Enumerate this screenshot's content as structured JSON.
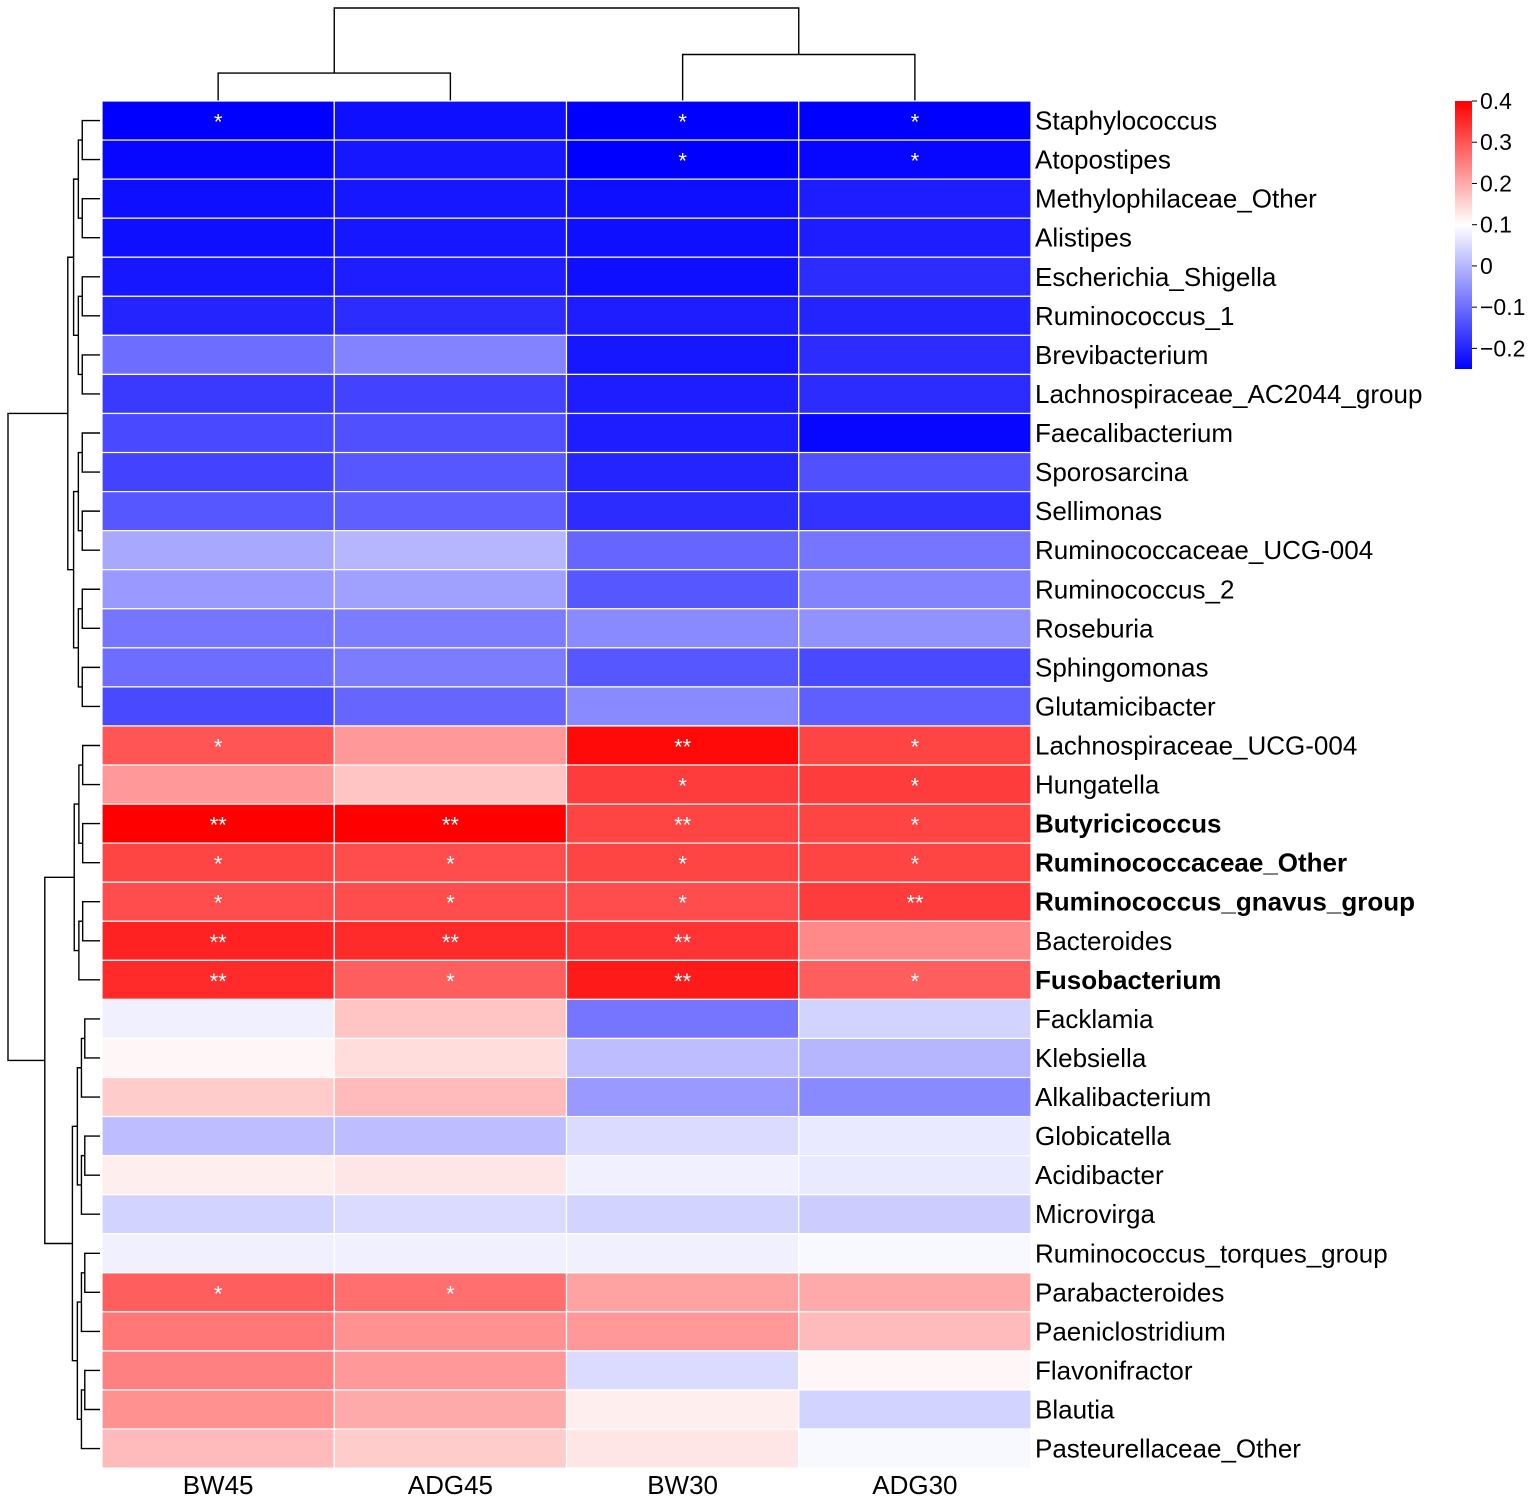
{
  "chart_data": {
    "type": "heatmap",
    "columns": [
      "BW45",
      "ADG45",
      "BW30",
      "ADG30"
    ],
    "rows": [
      "Staphylococcus",
      "Atopostipes",
      "Methylophilaceae_Other",
      "Alistipes",
      "Escherichia_Shigella",
      "Ruminococcus_1",
      "Brevibacterium",
      "Lachnospiraceae_AC2044_group",
      "Faecalibacterium",
      "Sporosarcina",
      "Sellimonas",
      "Ruminococcaceae_UCG-004",
      "Ruminococcus_2",
      "Roseburia",
      "Sphingomonas",
      "Glutamicibacter",
      "Lachnospiraceae_UCG-004",
      "Hungatella",
      "Butyricicoccus",
      "Ruminococcaceae_Other",
      "Ruminococcus_gnavus_group",
      "Bacteroides",
      "Fusobacterium",
      "Facklamia",
      "Klebsiella",
      "Alkalibacterium",
      "Globicatella",
      "Acidibacter",
      "Microvirga",
      "Ruminococcus_torques_group",
      "Parabacteroides",
      "Paeniclostridium",
      "Flavonifractor",
      "Blautia",
      "Pasteurellaceae_Other"
    ],
    "bold_rows": [
      "Butyricicoccus",
      "Ruminococcaceae_Other",
      "Ruminococcus_gnavus_group",
      "Fusobacterium"
    ],
    "values": [
      [
        -0.25,
        -0.23,
        -0.26,
        -0.25
      ],
      [
        -0.24,
        -0.22,
        -0.25,
        -0.24
      ],
      [
        -0.23,
        -0.22,
        -0.23,
        -0.21
      ],
      [
        -0.23,
        -0.22,
        -0.23,
        -0.21
      ],
      [
        -0.22,
        -0.21,
        -0.23,
        -0.19
      ],
      [
        -0.2,
        -0.19,
        -0.21,
        -0.2
      ],
      [
        -0.1,
        -0.07,
        -0.22,
        -0.19
      ],
      [
        -0.17,
        -0.16,
        -0.21,
        -0.19
      ],
      [
        -0.15,
        -0.14,
        -0.21,
        -0.24
      ],
      [
        -0.16,
        -0.13,
        -0.2,
        -0.14
      ],
      [
        -0.13,
        -0.12,
        -0.19,
        -0.18
      ],
      [
        -0.02,
        0.0,
        -0.11,
        -0.09
      ],
      [
        -0.04,
        -0.03,
        -0.13,
        -0.07
      ],
      [
        -0.09,
        -0.08,
        -0.06,
        -0.05
      ],
      [
        -0.1,
        -0.08,
        -0.13,
        -0.15
      ],
      [
        -0.15,
        -0.11,
        -0.06,
        -0.12
      ],
      [
        0.3,
        0.22,
        0.39,
        0.32
      ],
      [
        0.22,
        0.17,
        0.33,
        0.33
      ],
      [
        0.4,
        0.4,
        0.32,
        0.32
      ],
      [
        0.32,
        0.31,
        0.32,
        0.32
      ],
      [
        0.31,
        0.31,
        0.31,
        0.33
      ],
      [
        0.36,
        0.35,
        0.34,
        0.24
      ],
      [
        0.35,
        0.29,
        0.37,
        0.29
      ],
      [
        0.08,
        0.17,
        -0.09,
        0.04
      ],
      [
        0.11,
        0.14,
        0.01,
        0.0
      ],
      [
        0.16,
        0.18,
        -0.04,
        -0.06
      ],
      [
        0.01,
        0.01,
        0.05,
        0.07
      ],
      [
        0.12,
        0.13,
        0.08,
        0.07
      ],
      [
        0.04,
        0.05,
        0.04,
        0.03
      ],
      [
        0.08,
        0.08,
        0.08,
        0.09
      ],
      [
        0.29,
        0.27,
        0.21,
        0.2
      ],
      [
        0.26,
        0.23,
        0.22,
        0.18
      ],
      [
        0.25,
        0.22,
        0.05,
        0.11
      ],
      [
        0.23,
        0.2,
        0.12,
        0.04
      ],
      [
        0.18,
        0.16,
        0.13,
        0.09
      ]
    ],
    "significance": [
      [
        "*",
        "",
        "*",
        "*"
      ],
      [
        "",
        "",
        "*",
        "*"
      ],
      [
        "",
        "",
        "",
        ""
      ],
      [
        "",
        "",
        "",
        ""
      ],
      [
        "",
        "",
        "",
        ""
      ],
      [
        "",
        "",
        "",
        ""
      ],
      [
        "",
        "",
        "",
        ""
      ],
      [
        "",
        "",
        "",
        ""
      ],
      [
        "",
        "",
        "",
        ""
      ],
      [
        "",
        "",
        "",
        ""
      ],
      [
        "",
        "",
        "",
        ""
      ],
      [
        "",
        "",
        "",
        ""
      ],
      [
        "",
        "",
        "",
        ""
      ],
      [
        "",
        "",
        "",
        ""
      ],
      [
        "",
        "",
        "",
        ""
      ],
      [
        "",
        "",
        "",
        ""
      ],
      [
        "*",
        "",
        "**",
        "*"
      ],
      [
        "",
        "",
        "*",
        "*"
      ],
      [
        "**",
        "**",
        "**",
        "*"
      ],
      [
        "*",
        "*",
        "*",
        "*"
      ],
      [
        "*",
        "*",
        "*",
        "**"
      ],
      [
        "**",
        "**",
        "**",
        ""
      ],
      [
        "**",
        "*",
        "**",
        "*"
      ],
      [
        "",
        "",
        "",
        ""
      ],
      [
        "",
        "",
        "",
        ""
      ],
      [
        "",
        "",
        "",
        ""
      ],
      [
        "",
        "",
        "",
        ""
      ],
      [
        "",
        "",
        "",
        ""
      ],
      [
        "",
        "",
        "",
        ""
      ],
      [
        "",
        "",
        "",
        ""
      ],
      [
        "*",
        "*",
        "",
        ""
      ],
      [
        "",
        "",
        "",
        ""
      ],
      [
        "",
        "",
        "",
        ""
      ],
      [
        "",
        "",
        "",
        ""
      ],
      [
        "",
        "",
        "",
        ""
      ]
    ],
    "color_scale": {
      "min": -0.25,
      "mid": 0.1,
      "max": 0.4,
      "low_color": "#0000ff",
      "mid_color": "#ffffff",
      "high_color": "#ff0000"
    },
    "legend_ticks": [
      {
        "value": 0.4,
        "label": "0.4"
      },
      {
        "value": 0.3,
        "label": "0.3"
      },
      {
        "value": 0.2,
        "label": "0.2"
      },
      {
        "value": 0.1,
        "label": "0.1"
      },
      {
        "value": 0.0,
        "label": "0"
      },
      {
        "value": -0.1,
        "label": "−0.1"
      },
      {
        "value": -0.2,
        "label": "−0.2"
      }
    ],
    "column_dendrogram": [
      {
        "left": 0,
        "right": 1,
        "height": 0.3
      },
      {
        "left": 2,
        "right": 3,
        "height": 0.5
      },
      {
        "left": "m0",
        "right": "m1",
        "height": 1.0
      }
    ],
    "row_groups": [
      {
        "name": "negative-cluster",
        "first": 0,
        "last": 15
      },
      {
        "name": "positive-cluster",
        "first": 16,
        "last": 22
      },
      {
        "name": "neutral-cluster",
        "first": 23,
        "last": 34
      }
    ]
  }
}
